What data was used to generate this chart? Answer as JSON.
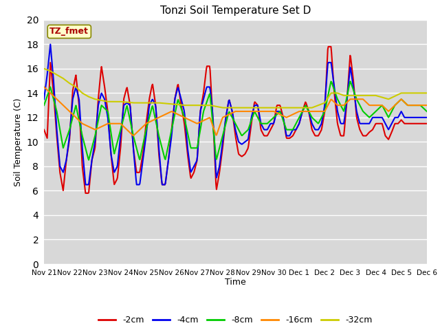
{
  "title": "Tonzi Soil Temperature Set D",
  "xlabel": "Time",
  "ylabel": "Soil Temperature (C)",
  "annotation": "TZ_fmet",
  "annotation_color": "#aa0000",
  "annotation_bg": "#ffffcc",
  "ylim": [
    0,
    20
  ],
  "xlim": [
    0,
    360
  ],
  "bg_color": "#d8d8d8",
  "legend_labels": [
    "-2cm",
    "-4cm",
    "-8cm",
    "-16cm",
    "-32cm"
  ],
  "legend_colors": [
    "#dd0000",
    "#0000ee",
    "#00cc00",
    "#ff8800",
    "#cccc00"
  ],
  "xtick_labels": [
    "Nov 21",
    "Nov 22",
    "Nov 23",
    "Nov 24",
    "Nov 25",
    "Nov 26",
    "Nov 27",
    "Nov 28",
    "Nov 29",
    "Nov 30",
    "Dec 1",
    "Dec 2",
    "Dec 3",
    "Dec 4",
    "Dec 5",
    "Dec 6"
  ],
  "xtick_positions": [
    0,
    24,
    48,
    72,
    96,
    120,
    144,
    168,
    192,
    216,
    240,
    264,
    288,
    312,
    336,
    360
  ],
  "red_keys": [
    [
      0,
      11.0
    ],
    [
      3,
      10.3
    ],
    [
      6,
      16.5
    ],
    [
      9,
      14.0
    ],
    [
      12,
      10.5
    ],
    [
      15,
      7.5
    ],
    [
      18,
      6.0
    ],
    [
      21,
      8.5
    ],
    [
      24,
      10.2
    ],
    [
      27,
      14.2
    ],
    [
      30,
      15.5
    ],
    [
      33,
      13.0
    ],
    [
      36,
      8.0
    ],
    [
      39,
      5.8
    ],
    [
      42,
      5.8
    ],
    [
      45,
      8.5
    ],
    [
      48,
      9.5
    ],
    [
      51,
      13.5
    ],
    [
      54,
      16.2
    ],
    [
      57,
      14.5
    ],
    [
      60,
      12.5
    ],
    [
      63,
      9.0
    ],
    [
      66,
      6.5
    ],
    [
      69,
      7.0
    ],
    [
      72,
      9.5
    ],
    [
      75,
      13.5
    ],
    [
      78,
      14.5
    ],
    [
      81,
      13.0
    ],
    [
      84,
      9.5
    ],
    [
      87,
      7.5
    ],
    [
      90,
      7.5
    ],
    [
      93,
      9.0
    ],
    [
      96,
      11.5
    ],
    [
      99,
      13.5
    ],
    [
      102,
      14.8
    ],
    [
      105,
      13.0
    ],
    [
      108,
      9.0
    ],
    [
      111,
      6.5
    ],
    [
      114,
      6.5
    ],
    [
      117,
      8.5
    ],
    [
      120,
      11.0
    ],
    [
      123,
      13.5
    ],
    [
      126,
      14.8
    ],
    [
      129,
      13.0
    ],
    [
      132,
      11.5
    ],
    [
      135,
      9.0
    ],
    [
      138,
      7.0
    ],
    [
      141,
      7.5
    ],
    [
      144,
      8.5
    ],
    [
      147,
      12.5
    ],
    [
      150,
      14.0
    ],
    [
      153,
      16.2
    ],
    [
      156,
      16.2
    ],
    [
      158,
      13.0
    ],
    [
      160,
      10.0
    ],
    [
      162,
      6.0
    ],
    [
      165,
      7.5
    ],
    [
      168,
      9.5
    ],
    [
      171,
      12.0
    ],
    [
      174,
      13.5
    ],
    [
      177,
      12.5
    ],
    [
      180,
      10.5
    ],
    [
      183,
      9.0
    ],
    [
      186,
      8.8
    ],
    [
      189,
      9.0
    ],
    [
      192,
      9.5
    ],
    [
      195,
      11.5
    ],
    [
      198,
      13.3
    ],
    [
      201,
      13.0
    ],
    [
      204,
      11.0
    ],
    [
      207,
      10.5
    ],
    [
      210,
      10.5
    ],
    [
      213,
      11.0
    ],
    [
      216,
      11.5
    ],
    [
      219,
      13.0
    ],
    [
      222,
      13.0
    ],
    [
      225,
      12.0
    ],
    [
      228,
      10.3
    ],
    [
      231,
      10.3
    ],
    [
      234,
      10.5
    ],
    [
      237,
      11.0
    ],
    [
      240,
      11.5
    ],
    [
      243,
      12.5
    ],
    [
      246,
      13.3
    ],
    [
      249,
      12.5
    ],
    [
      252,
      11.0
    ],
    [
      255,
      10.5
    ],
    [
      258,
      10.5
    ],
    [
      261,
      11.0
    ],
    [
      264,
      12.5
    ],
    [
      267,
      17.8
    ],
    [
      270,
      17.8
    ],
    [
      273,
      14.0
    ],
    [
      276,
      11.5
    ],
    [
      279,
      10.5
    ],
    [
      282,
      10.5
    ],
    [
      285,
      13.5
    ],
    [
      288,
      17.2
    ],
    [
      291,
      15.0
    ],
    [
      294,
      12.0
    ],
    [
      297,
      11.0
    ],
    [
      300,
      10.5
    ],
    [
      303,
      10.5
    ],
    [
      306,
      10.8
    ],
    [
      309,
      11.0
    ],
    [
      312,
      11.5
    ],
    [
      315,
      11.5
    ],
    [
      318,
      11.5
    ],
    [
      321,
      10.5
    ],
    [
      324,
      10.2
    ],
    [
      327,
      10.8
    ],
    [
      330,
      11.5
    ],
    [
      333,
      11.5
    ],
    [
      336,
      11.8
    ],
    [
      339,
      11.5
    ],
    [
      342,
      11.5
    ],
    [
      345,
      11.5
    ],
    [
      348,
      11.5
    ],
    [
      351,
      11.5
    ],
    [
      354,
      11.5
    ],
    [
      357,
      11.5
    ],
    [
      360,
      11.5
    ]
  ],
  "blue_keys": [
    [
      0,
      13.5
    ],
    [
      3,
      15.5
    ],
    [
      6,
      18.0
    ],
    [
      9,
      15.0
    ],
    [
      12,
      11.0
    ],
    [
      15,
      8.0
    ],
    [
      18,
      7.5
    ],
    [
      21,
      8.5
    ],
    [
      24,
      10.5
    ],
    [
      27,
      13.5
    ],
    [
      30,
      14.5
    ],
    [
      33,
      13.5
    ],
    [
      36,
      9.5
    ],
    [
      39,
      6.5
    ],
    [
      42,
      6.5
    ],
    [
      45,
      8.5
    ],
    [
      48,
      10.0
    ],
    [
      51,
      13.0
    ],
    [
      54,
      14.0
    ],
    [
      57,
      13.5
    ],
    [
      60,
      12.0
    ],
    [
      63,
      9.0
    ],
    [
      66,
      7.5
    ],
    [
      69,
      8.0
    ],
    [
      72,
      10.5
    ],
    [
      75,
      13.0
    ],
    [
      78,
      13.2
    ],
    [
      81,
      13.0
    ],
    [
      84,
      9.5
    ],
    [
      87,
      6.5
    ],
    [
      90,
      6.5
    ],
    [
      93,
      8.5
    ],
    [
      96,
      10.5
    ],
    [
      99,
      13.0
    ],
    [
      102,
      13.5
    ],
    [
      105,
      13.0
    ],
    [
      108,
      9.5
    ],
    [
      111,
      6.5
    ],
    [
      114,
      6.5
    ],
    [
      117,
      8.5
    ],
    [
      120,
      10.5
    ],
    [
      123,
      13.5
    ],
    [
      126,
      14.5
    ],
    [
      129,
      13.5
    ],
    [
      132,
      12.5
    ],
    [
      135,
      9.5
    ],
    [
      138,
      7.5
    ],
    [
      141,
      8.0
    ],
    [
      144,
      8.5
    ],
    [
      147,
      12.5
    ],
    [
      150,
      13.5
    ],
    [
      153,
      14.5
    ],
    [
      156,
      14.5
    ],
    [
      158,
      13.0
    ],
    [
      160,
      10.5
    ],
    [
      162,
      7.0
    ],
    [
      165,
      8.0
    ],
    [
      168,
      10.0
    ],
    [
      171,
      12.0
    ],
    [
      174,
      13.5
    ],
    [
      177,
      12.5
    ],
    [
      180,
      11.0
    ],
    [
      183,
      10.0
    ],
    [
      186,
      9.8
    ],
    [
      189,
      10.0
    ],
    [
      192,
      10.2
    ],
    [
      195,
      12.0
    ],
    [
      198,
      13.0
    ],
    [
      201,
      13.0
    ],
    [
      204,
      11.5
    ],
    [
      207,
      11.0
    ],
    [
      210,
      11.0
    ],
    [
      213,
      11.5
    ],
    [
      216,
      11.5
    ],
    [
      219,
      12.5
    ],
    [
      222,
      12.5
    ],
    [
      225,
      12.0
    ],
    [
      228,
      10.5
    ],
    [
      231,
      10.5
    ],
    [
      234,
      11.0
    ],
    [
      237,
      11.0
    ],
    [
      240,
      11.5
    ],
    [
      243,
      12.5
    ],
    [
      246,
      13.0
    ],
    [
      249,
      12.5
    ],
    [
      252,
      11.5
    ],
    [
      255,
      11.0
    ],
    [
      258,
      11.0
    ],
    [
      261,
      11.5
    ],
    [
      264,
      13.0
    ],
    [
      267,
      16.5
    ],
    [
      270,
      16.5
    ],
    [
      273,
      14.5
    ],
    [
      276,
      12.5
    ],
    [
      279,
      11.5
    ],
    [
      282,
      11.5
    ],
    [
      285,
      13.5
    ],
    [
      288,
      16.2
    ],
    [
      291,
      14.5
    ],
    [
      294,
      12.5
    ],
    [
      297,
      11.5
    ],
    [
      300,
      11.5
    ],
    [
      303,
      11.5
    ],
    [
      306,
      11.5
    ],
    [
      309,
      12.0
    ],
    [
      312,
      12.0
    ],
    [
      315,
      12.0
    ],
    [
      318,
      12.0
    ],
    [
      321,
      11.5
    ],
    [
      324,
      11.0
    ],
    [
      327,
      11.5
    ],
    [
      330,
      12.0
    ],
    [
      333,
      12.0
    ],
    [
      336,
      12.5
    ],
    [
      339,
      12.0
    ],
    [
      342,
      12.0
    ],
    [
      345,
      12.0
    ],
    [
      348,
      12.0
    ],
    [
      351,
      12.0
    ],
    [
      354,
      12.0
    ],
    [
      357,
      12.0
    ],
    [
      360,
      12.0
    ]
  ],
  "green_keys": [
    [
      0,
      13.0
    ],
    [
      6,
      14.5
    ],
    [
      12,
      12.5
    ],
    [
      18,
      9.5
    ],
    [
      24,
      11.0
    ],
    [
      30,
      13.0
    ],
    [
      36,
      10.5
    ],
    [
      42,
      8.5
    ],
    [
      48,
      10.5
    ],
    [
      54,
      13.0
    ],
    [
      60,
      12.5
    ],
    [
      66,
      9.0
    ],
    [
      72,
      11.0
    ],
    [
      78,
      13.0
    ],
    [
      84,
      10.5
    ],
    [
      90,
      8.5
    ],
    [
      96,
      11.0
    ],
    [
      102,
      13.0
    ],
    [
      108,
      10.5
    ],
    [
      114,
      8.5
    ],
    [
      120,
      11.0
    ],
    [
      126,
      13.5
    ],
    [
      132,
      12.0
    ],
    [
      138,
      9.5
    ],
    [
      144,
      9.5
    ],
    [
      150,
      12.5
    ],
    [
      156,
      14.0
    ],
    [
      162,
      8.5
    ],
    [
      168,
      10.5
    ],
    [
      174,
      12.5
    ],
    [
      180,
      11.5
    ],
    [
      186,
      10.5
    ],
    [
      192,
      11.0
    ],
    [
      198,
      12.5
    ],
    [
      204,
      11.5
    ],
    [
      210,
      11.5
    ],
    [
      216,
      12.0
    ],
    [
      222,
      12.5
    ],
    [
      228,
      11.0
    ],
    [
      234,
      11.0
    ],
    [
      240,
      12.0
    ],
    [
      246,
      13.0
    ],
    [
      252,
      12.0
    ],
    [
      258,
      11.5
    ],
    [
      264,
      12.5
    ],
    [
      270,
      15.0
    ],
    [
      276,
      13.5
    ],
    [
      282,
      12.5
    ],
    [
      288,
      15.0
    ],
    [
      294,
      13.5
    ],
    [
      300,
      12.5
    ],
    [
      306,
      12.0
    ],
    [
      312,
      12.5
    ],
    [
      318,
      13.0
    ],
    [
      324,
      12.0
    ],
    [
      330,
      13.0
    ],
    [
      336,
      13.5
    ],
    [
      342,
      13.0
    ],
    [
      348,
      13.0
    ],
    [
      354,
      13.0
    ],
    [
      360,
      12.5
    ]
  ],
  "orange_keys": [
    [
      0,
      14.5
    ],
    [
      12,
      13.5
    ],
    [
      24,
      12.5
    ],
    [
      36,
      11.5
    ],
    [
      48,
      11.0
    ],
    [
      60,
      11.5
    ],
    [
      72,
      11.5
    ],
    [
      84,
      10.5
    ],
    [
      96,
      11.5
    ],
    [
      108,
      12.0
    ],
    [
      120,
      12.5
    ],
    [
      132,
      12.0
    ],
    [
      144,
      11.5
    ],
    [
      156,
      12.0
    ],
    [
      162,
      10.5
    ],
    [
      168,
      12.0
    ],
    [
      180,
      12.5
    ],
    [
      192,
      12.5
    ],
    [
      204,
      12.5
    ],
    [
      216,
      12.5
    ],
    [
      228,
      12.0
    ],
    [
      240,
      12.5
    ],
    [
      252,
      12.5
    ],
    [
      264,
      12.5
    ],
    [
      270,
      13.5
    ],
    [
      276,
      13.0
    ],
    [
      282,
      13.0
    ],
    [
      288,
      13.5
    ],
    [
      294,
      13.5
    ],
    [
      300,
      13.5
    ],
    [
      306,
      13.0
    ],
    [
      312,
      13.0
    ],
    [
      318,
      13.0
    ],
    [
      324,
      12.5
    ],
    [
      330,
      13.0
    ],
    [
      336,
      13.5
    ],
    [
      342,
      13.0
    ],
    [
      348,
      13.0
    ],
    [
      354,
      13.0
    ],
    [
      360,
      13.0
    ]
  ],
  "yellow_keys": [
    [
      0,
      16.0
    ],
    [
      6,
      15.8
    ],
    [
      12,
      15.5
    ],
    [
      18,
      15.2
    ],
    [
      24,
      14.8
    ],
    [
      30,
      14.5
    ],
    [
      36,
      14.0
    ],
    [
      42,
      13.7
    ],
    [
      48,
      13.5
    ],
    [
      54,
      13.4
    ],
    [
      60,
      13.3
    ],
    [
      66,
      13.3
    ],
    [
      72,
      13.3
    ],
    [
      84,
      13.2
    ],
    [
      96,
      13.2
    ],
    [
      108,
      13.2
    ],
    [
      120,
      13.1
    ],
    [
      132,
      13.0
    ],
    [
      144,
      13.0
    ],
    [
      156,
      13.0
    ],
    [
      162,
      12.9
    ],
    [
      168,
      12.8
    ],
    [
      180,
      12.8
    ],
    [
      192,
      12.8
    ],
    [
      204,
      12.8
    ],
    [
      216,
      12.8
    ],
    [
      228,
      12.8
    ],
    [
      240,
      12.8
    ],
    [
      252,
      12.8
    ],
    [
      264,
      13.2
    ],
    [
      270,
      14.0
    ],
    [
      276,
      14.0
    ],
    [
      282,
      13.8
    ],
    [
      288,
      13.8
    ],
    [
      300,
      13.8
    ],
    [
      312,
      13.8
    ],
    [
      324,
      13.5
    ],
    [
      336,
      14.0
    ],
    [
      348,
      14.0
    ],
    [
      360,
      14.0
    ]
  ]
}
